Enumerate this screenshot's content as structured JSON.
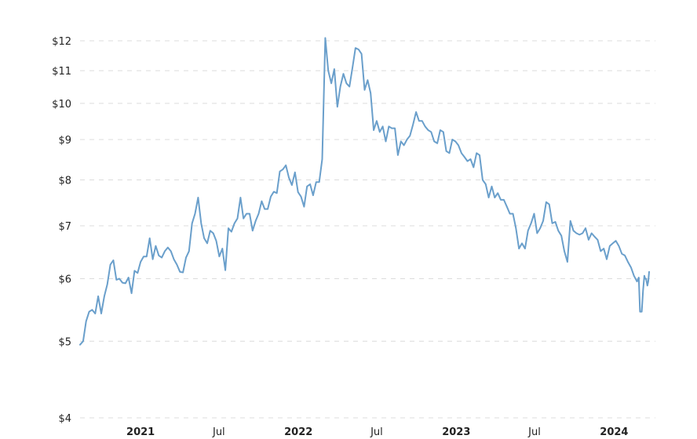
{
  "chart_data": {
    "type": "line",
    "y_scale": "log",
    "ylim": [
      4,
      12.2
    ],
    "yticks": [
      {
        "value": 4,
        "label": "$4"
      },
      {
        "value": 5,
        "label": "$5"
      },
      {
        "value": 6,
        "label": "$6"
      },
      {
        "value": 7,
        "label": "$7"
      },
      {
        "value": 8,
        "label": "$8"
      },
      {
        "value": 9,
        "label": "$9"
      },
      {
        "value": 10,
        "label": "$10"
      },
      {
        "value": 11,
        "label": "$11"
      },
      {
        "value": 12,
        "label": "$12"
      }
    ],
    "xlim": [
      "2020-08-14",
      "2024-03-22"
    ],
    "xticks": [
      {
        "date": "2021-01-01",
        "label": "2021",
        "major": true
      },
      {
        "date": "2021-07-01",
        "label": "Jul",
        "major": false
      },
      {
        "date": "2022-01-01",
        "label": "2022",
        "major": true
      },
      {
        "date": "2022-07-01",
        "label": "Jul",
        "major": false
      },
      {
        "date": "2023-01-01",
        "label": "2023",
        "major": true
      },
      {
        "date": "2023-07-01",
        "label": "Jul",
        "major": false
      },
      {
        "date": "2024-01-01",
        "label": "2024",
        "major": true
      }
    ],
    "grid": true,
    "colors": {
      "line": "#6a9fcb",
      "grid": "#dcdcdc"
    },
    "series": [
      {
        "points": [
          [
            "2020-08-14",
            4.95
          ],
          [
            "2020-08-21",
            5.0
          ],
          [
            "2020-08-28",
            5.3
          ],
          [
            "2020-09-04",
            5.45
          ],
          [
            "2020-09-11",
            5.48
          ],
          [
            "2020-09-18",
            5.42
          ],
          [
            "2020-09-25",
            5.7
          ],
          [
            "2020-10-02",
            5.42
          ],
          [
            "2020-10-09",
            5.7
          ],
          [
            "2020-10-16",
            5.9
          ],
          [
            "2020-10-23",
            6.25
          ],
          [
            "2020-10-30",
            6.33
          ],
          [
            "2020-11-06",
            5.98
          ],
          [
            "2020-11-13",
            6.0
          ],
          [
            "2020-11-20",
            5.93
          ],
          [
            "2020-11-27",
            5.92
          ],
          [
            "2020-12-04",
            6.02
          ],
          [
            "2020-12-11",
            5.75
          ],
          [
            "2020-12-18",
            6.14
          ],
          [
            "2020-12-25",
            6.1
          ],
          [
            "2021-01-01",
            6.3
          ],
          [
            "2021-01-08",
            6.4
          ],
          [
            "2021-01-15",
            6.4
          ],
          [
            "2021-01-22",
            6.75
          ],
          [
            "2021-01-29",
            6.35
          ],
          [
            "2021-02-05",
            6.6
          ],
          [
            "2021-02-12",
            6.42
          ],
          [
            "2021-02-19",
            6.38
          ],
          [
            "2021-02-26",
            6.5
          ],
          [
            "2021-03-05",
            6.57
          ],
          [
            "2021-03-12",
            6.5
          ],
          [
            "2021-03-19",
            6.35
          ],
          [
            "2021-03-26",
            6.25
          ],
          [
            "2021-04-02",
            6.12
          ],
          [
            "2021-04-09",
            6.11
          ],
          [
            "2021-04-16",
            6.38
          ],
          [
            "2021-04-23",
            6.5
          ],
          [
            "2021-04-30",
            7.05
          ],
          [
            "2021-05-07",
            7.25
          ],
          [
            "2021-05-14",
            7.6
          ],
          [
            "2021-05-21",
            7.05
          ],
          [
            "2021-05-28",
            6.75
          ],
          [
            "2021-06-04",
            6.65
          ],
          [
            "2021-06-11",
            6.9
          ],
          [
            "2021-06-18",
            6.85
          ],
          [
            "2021-06-25",
            6.7
          ],
          [
            "2021-07-02",
            6.4
          ],
          [
            "2021-07-09",
            6.55
          ],
          [
            "2021-07-16",
            6.15
          ],
          [
            "2021-07-23",
            6.95
          ],
          [
            "2021-07-30",
            6.88
          ],
          [
            "2021-08-06",
            7.05
          ],
          [
            "2021-08-13",
            7.15
          ],
          [
            "2021-08-20",
            7.6
          ],
          [
            "2021-08-27",
            7.15
          ],
          [
            "2021-09-03",
            7.25
          ],
          [
            "2021-09-10",
            7.25
          ],
          [
            "2021-09-17",
            6.9
          ],
          [
            "2021-09-24",
            7.1
          ],
          [
            "2021-10-01",
            7.25
          ],
          [
            "2021-10-08",
            7.52
          ],
          [
            "2021-10-15",
            7.35
          ],
          [
            "2021-10-22",
            7.35
          ],
          [
            "2021-10-29",
            7.62
          ],
          [
            "2021-11-05",
            7.73
          ],
          [
            "2021-11-12",
            7.7
          ],
          [
            "2021-11-19",
            8.2
          ],
          [
            "2021-11-26",
            8.25
          ],
          [
            "2021-12-03",
            8.35
          ],
          [
            "2021-12-10",
            8.05
          ],
          [
            "2021-12-17",
            7.88
          ],
          [
            "2021-12-24",
            8.18
          ],
          [
            "2021-12-31",
            7.72
          ],
          [
            "2022-01-07",
            7.62
          ],
          [
            "2022-01-14",
            7.4
          ],
          [
            "2022-01-21",
            7.85
          ],
          [
            "2022-01-28",
            7.9
          ],
          [
            "2022-02-04",
            7.65
          ],
          [
            "2022-02-11",
            7.95
          ],
          [
            "2022-02-18",
            7.95
          ],
          [
            "2022-02-25",
            8.5
          ],
          [
            "2022-03-04",
            12.1
          ],
          [
            "2022-03-11",
            11.0
          ],
          [
            "2022-03-18",
            10.6
          ],
          [
            "2022-03-25",
            11.05
          ],
          [
            "2022-04-01",
            9.9
          ],
          [
            "2022-04-08",
            10.5
          ],
          [
            "2022-04-15",
            10.9
          ],
          [
            "2022-04-22",
            10.6
          ],
          [
            "2022-04-29",
            10.5
          ],
          [
            "2022-05-06",
            11.1
          ],
          [
            "2022-05-13",
            11.75
          ],
          [
            "2022-05-20",
            11.7
          ],
          [
            "2022-05-27",
            11.55
          ],
          [
            "2022-06-03",
            10.4
          ],
          [
            "2022-06-10",
            10.7
          ],
          [
            "2022-06-17",
            10.3
          ],
          [
            "2022-06-24",
            9.25
          ],
          [
            "2022-07-01",
            9.5
          ],
          [
            "2022-07-08",
            9.2
          ],
          [
            "2022-07-15",
            9.35
          ],
          [
            "2022-07-22",
            8.95
          ],
          [
            "2022-07-29",
            9.35
          ],
          [
            "2022-08-05",
            9.3
          ],
          [
            "2022-08-12",
            9.3
          ],
          [
            "2022-08-19",
            8.6
          ],
          [
            "2022-08-26",
            8.95
          ],
          [
            "2022-09-02",
            8.85
          ],
          [
            "2022-09-09",
            9.0
          ],
          [
            "2022-09-16",
            9.1
          ],
          [
            "2022-09-23",
            9.4
          ],
          [
            "2022-09-30",
            9.75
          ],
          [
            "2022-10-07",
            9.5
          ],
          [
            "2022-10-14",
            9.5
          ],
          [
            "2022-10-21",
            9.35
          ],
          [
            "2022-10-28",
            9.25
          ],
          [
            "2022-11-04",
            9.2
          ],
          [
            "2022-11-11",
            8.95
          ],
          [
            "2022-11-18",
            8.9
          ],
          [
            "2022-11-25",
            9.25
          ],
          [
            "2022-12-02",
            9.2
          ],
          [
            "2022-12-09",
            8.7
          ],
          [
            "2022-12-16",
            8.65
          ],
          [
            "2022-12-23",
            9.0
          ],
          [
            "2022-12-30",
            8.95
          ],
          [
            "2023-01-06",
            8.85
          ],
          [
            "2023-01-13",
            8.65
          ],
          [
            "2023-01-20",
            8.55
          ],
          [
            "2023-01-27",
            8.45
          ],
          [
            "2023-02-03",
            8.5
          ],
          [
            "2023-02-10",
            8.3
          ],
          [
            "2023-02-17",
            8.65
          ],
          [
            "2023-02-24",
            8.6
          ],
          [
            "2023-03-03",
            8.0
          ],
          [
            "2023-03-10",
            7.9
          ],
          [
            "2023-03-17",
            7.6
          ],
          [
            "2023-03-24",
            7.85
          ],
          [
            "2023-03-31",
            7.6
          ],
          [
            "2023-04-07",
            7.7
          ],
          [
            "2023-04-14",
            7.55
          ],
          [
            "2023-04-21",
            7.55
          ],
          [
            "2023-04-28",
            7.4
          ],
          [
            "2023-05-05",
            7.25
          ],
          [
            "2023-05-12",
            7.25
          ],
          [
            "2023-05-19",
            6.95
          ],
          [
            "2023-05-26",
            6.55
          ],
          [
            "2023-06-02",
            6.65
          ],
          [
            "2023-06-09",
            6.55
          ],
          [
            "2023-06-16",
            6.9
          ],
          [
            "2023-06-23",
            7.05
          ],
          [
            "2023-06-30",
            7.25
          ],
          [
            "2023-07-07",
            6.85
          ],
          [
            "2023-07-14",
            6.95
          ],
          [
            "2023-07-21",
            7.1
          ],
          [
            "2023-07-28",
            7.5
          ],
          [
            "2023-08-04",
            7.45
          ],
          [
            "2023-08-11",
            7.05
          ],
          [
            "2023-08-18",
            7.08
          ],
          [
            "2023-08-25",
            6.9
          ],
          [
            "2023-09-01",
            6.8
          ],
          [
            "2023-09-08",
            6.5
          ],
          [
            "2023-09-15",
            6.3
          ],
          [
            "2023-09-22",
            7.1
          ],
          [
            "2023-09-29",
            6.9
          ],
          [
            "2023-10-06",
            6.85
          ],
          [
            "2023-10-13",
            6.82
          ],
          [
            "2023-10-20",
            6.85
          ],
          [
            "2023-10-27",
            6.95
          ],
          [
            "2023-11-03",
            6.72
          ],
          [
            "2023-11-10",
            6.85
          ],
          [
            "2023-11-17",
            6.78
          ],
          [
            "2023-11-24",
            6.72
          ],
          [
            "2023-12-01",
            6.5
          ],
          [
            "2023-12-08",
            6.55
          ],
          [
            "2023-12-15",
            6.35
          ],
          [
            "2023-12-22",
            6.6
          ],
          [
            "2023-12-29",
            6.65
          ],
          [
            "2024-01-05",
            6.7
          ],
          [
            "2024-01-12",
            6.6
          ],
          [
            "2024-01-19",
            6.45
          ],
          [
            "2024-01-26",
            6.42
          ],
          [
            "2024-02-02",
            6.3
          ],
          [
            "2024-02-09",
            6.2
          ],
          [
            "2024-02-16",
            6.05
          ],
          [
            "2024-02-23",
            5.95
          ],
          [
            "2024-02-27",
            6.02
          ],
          [
            "2024-03-01",
            5.45
          ],
          [
            "2024-03-05",
            5.45
          ],
          [
            "2024-03-08",
            5.8
          ],
          [
            "2024-03-11",
            6.05
          ],
          [
            "2024-03-13",
            6.0
          ],
          [
            "2024-03-15",
            6.0
          ],
          [
            "2024-03-18",
            5.88
          ],
          [
            "2024-03-20",
            5.95
          ],
          [
            "2024-03-22",
            6.12
          ]
        ]
      }
    ]
  }
}
